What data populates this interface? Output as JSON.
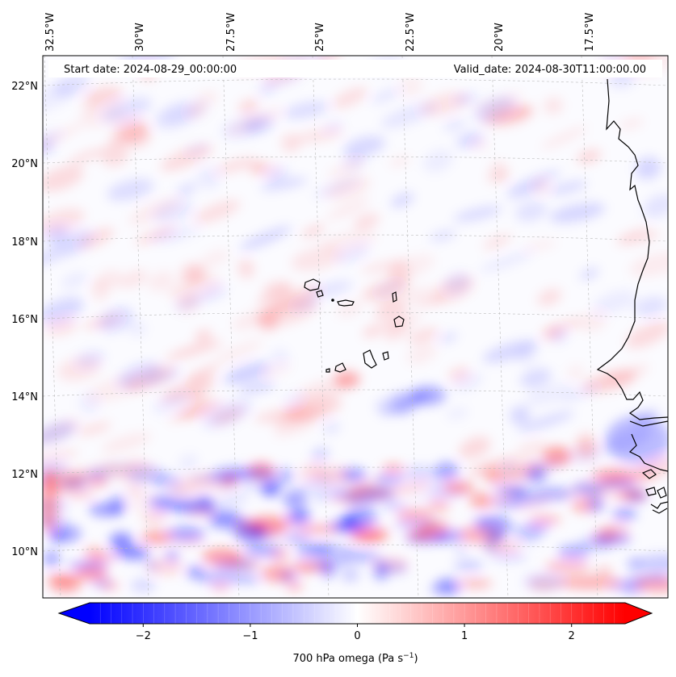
{
  "header": {
    "start_date": "Start date: 2024-08-29_00:00:00",
    "valid_date": "Valid_date: 2024-08-30T11:00:00.00"
  },
  "map": {
    "lon_labels": [
      "32.5°W",
      "30°W",
      "27.5°W",
      "25°W",
      "22.5°W",
      "20°W",
      "17.5°W"
    ],
    "lat_labels": [
      "22°N",
      "20°N",
      "18°N",
      "16°N",
      "14°N",
      "12°N",
      "10°N"
    ]
  },
  "colorbar": {
    "ticks": [
      "−2",
      "−1",
      "0",
      "1",
      "2"
    ],
    "tick_values": [
      -2,
      -1,
      0,
      1,
      2
    ],
    "range": [
      -2.5,
      2.5
    ],
    "colormap": "bwr",
    "colors": {
      "min": "#0000ff",
      "mid": "#ffffff",
      "max": "#ff0000"
    },
    "label": "700 hPa omega (Pa s",
    "label_sup": "−1",
    "label_end": ")"
  }
}
